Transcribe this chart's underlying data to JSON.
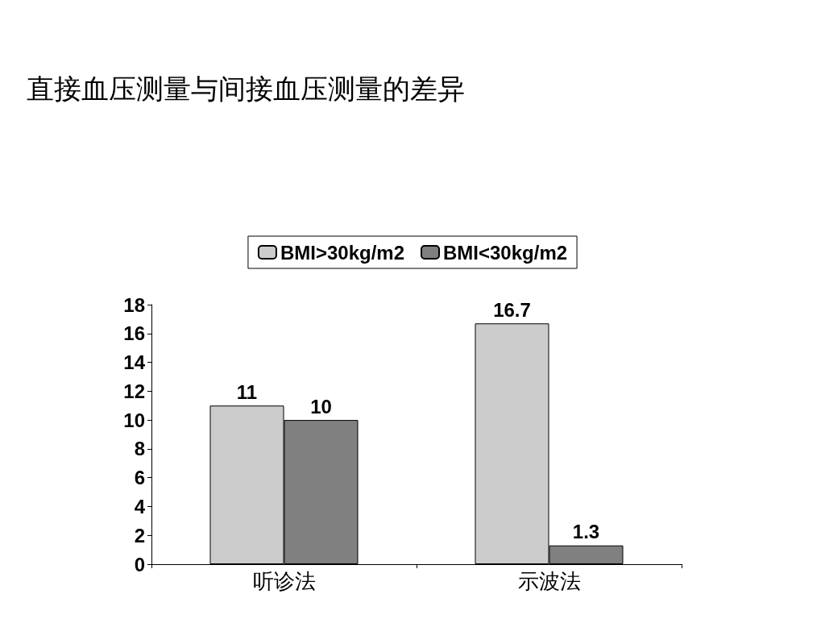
{
  "chart_data": {
    "type": "bar",
    "title": "直接血压测量与间接血压测量的差异",
    "categories": [
      "听诊法",
      "示波法"
    ],
    "series": [
      {
        "name": "BMI>30kg/m2",
        "color": "#cccccc",
        "values": [
          11,
          16.7
        ]
      },
      {
        "name": "BMI<30kg/m2",
        "color": "#808080",
        "values": [
          10,
          1.3
        ]
      }
    ],
    "ylim": [
      0,
      18
    ],
    "yticks": [
      0,
      2,
      4,
      6,
      8,
      10,
      12,
      14,
      16,
      18
    ],
    "grid": false,
    "legend": "top",
    "data_labels": true
  }
}
